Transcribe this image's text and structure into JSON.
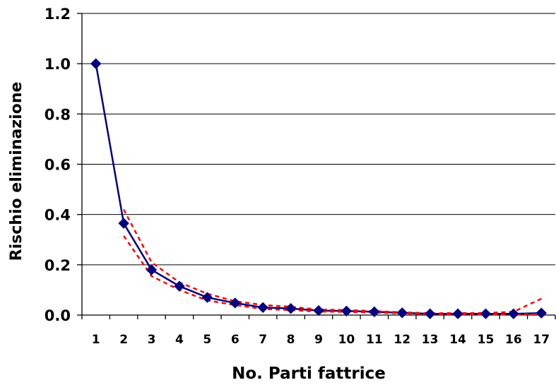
{
  "chart_data": {
    "type": "line",
    "title": "",
    "xlabel": "No. Parti fattrice",
    "ylabel": "Rischio eliminazione",
    "categories": [
      "1",
      "2",
      "3",
      "4",
      "5",
      "6",
      "7",
      "8",
      "9",
      "10",
      "11",
      "12",
      "13",
      "14",
      "15",
      "16",
      "17"
    ],
    "ylim": [
      0.0,
      1.2
    ],
    "ytick_labels": [
      "0.0",
      "0.2",
      "0.4",
      "0.6",
      "0.8",
      "1.0",
      "1.2"
    ],
    "ytick_values": [
      0.0,
      0.2,
      0.4,
      0.6,
      0.8,
      1.0,
      1.2
    ],
    "grid": true,
    "series": [
      {
        "role": "estimate",
        "style": "solid-diamond",
        "color": "#000080",
        "values": [
          1.0,
          0.365,
          0.18,
          0.115,
          0.07,
          0.048,
          0.03,
          0.026,
          0.018,
          0.016,
          0.013,
          0.009,
          0.005,
          0.005,
          0.005,
          0.005,
          0.008
        ],
        "marker_from_index": 0
      },
      {
        "role": "upper-bound",
        "style": "dashed",
        "color": "#ff0000",
        "values": [
          null,
          0.42,
          0.21,
          0.13,
          0.085,
          0.055,
          0.04,
          0.033,
          0.022,
          0.02,
          0.016,
          0.011,
          0.007,
          0.008,
          0.008,
          0.013,
          0.065
        ]
      },
      {
        "role": "lower-bound",
        "style": "dashed",
        "color": "#ff0000",
        "values": [
          null,
          0.315,
          0.155,
          0.1,
          0.058,
          0.04,
          0.024,
          0.02,
          0.014,
          0.013,
          0.01,
          0.007,
          0.003,
          0.003,
          0.002,
          0.002,
          0.004
        ]
      }
    ]
  }
}
